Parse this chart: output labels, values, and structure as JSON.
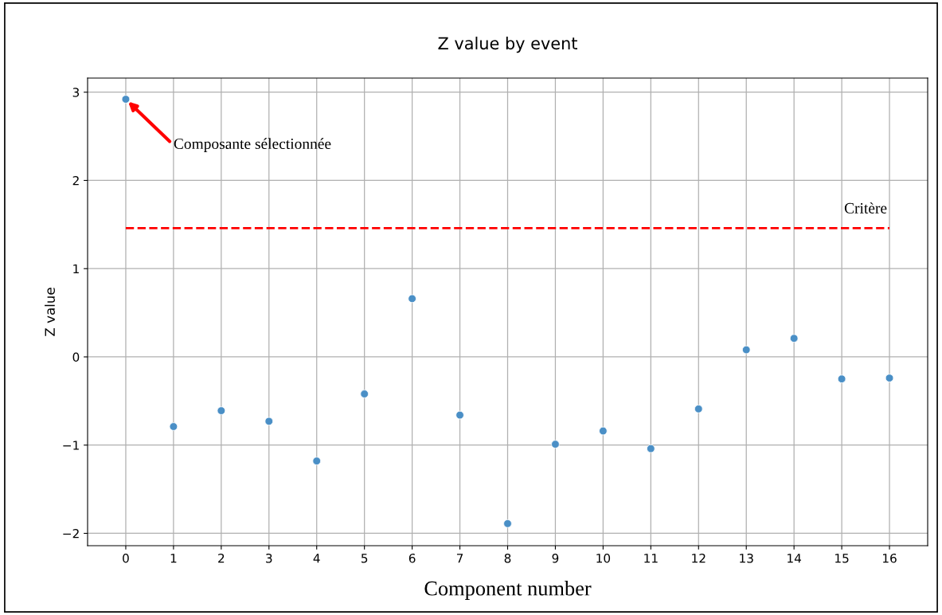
{
  "chart_data": {
    "type": "scatter",
    "title": "Z value by event",
    "xlabel": "Component number",
    "ylabel": "Z value",
    "x": [
      0,
      1,
      2,
      3,
      4,
      5,
      6,
      7,
      8,
      9,
      10,
      11,
      12,
      13,
      14,
      15,
      16
    ],
    "values": [
      2.92,
      -0.79,
      -0.61,
      -0.73,
      -1.18,
      -0.42,
      0.66,
      -0.66,
      -1.89,
      -0.99,
      -0.84,
      -1.04,
      -0.59,
      0.08,
      0.21,
      -0.25,
      -0.24
    ],
    "color": "#4a8fc6",
    "marker": "circle",
    "xlim": [
      -0.8,
      16.8
    ],
    "xticks": [
      0,
      1,
      2,
      3,
      4,
      5,
      6,
      7,
      8,
      9,
      10,
      11,
      12,
      13,
      14,
      15,
      16
    ],
    "ylim": [
      -2.14,
      3.16
    ],
    "yticks": [
      {
        "value": -2,
        "label": "−2"
      },
      {
        "value": -1,
        "label": "−1"
      },
      0,
      1,
      2,
      3
    ],
    "grid": true,
    "ref_lines": [
      {
        "axis": "y",
        "value": 1.46,
        "label": "Critère",
        "color": "#ff0000",
        "line_style": "dashed"
      }
    ],
    "annotations": [
      {
        "text": "Composante sélectionnée",
        "x": 0,
        "y": 2.92
      }
    ]
  }
}
